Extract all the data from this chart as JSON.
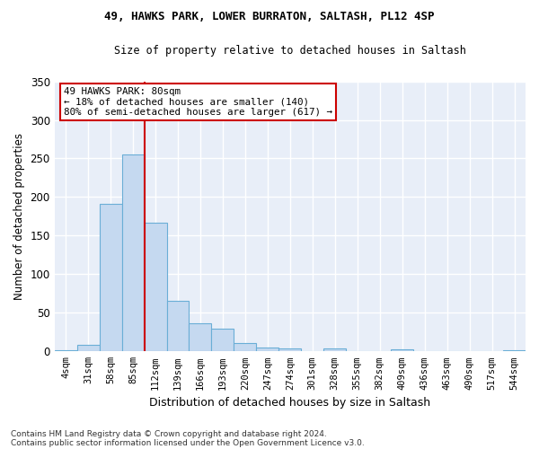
{
  "title1": "49, HAWKS PARK, LOWER BURRATON, SALTASH, PL12 4SP",
  "title2": "Size of property relative to detached houses in Saltash",
  "xlabel": "Distribution of detached houses by size in Saltash",
  "ylabel": "Number of detached properties",
  "bar_labels": [
    "4sqm",
    "31sqm",
    "58sqm",
    "85sqm",
    "112sqm",
    "139sqm",
    "166sqm",
    "193sqm",
    "220sqm",
    "247sqm",
    "274sqm",
    "301sqm",
    "328sqm",
    "355sqm",
    "382sqm",
    "409sqm",
    "436sqm",
    "463sqm",
    "490sqm",
    "517sqm",
    "544sqm"
  ],
  "bar_values": [
    2,
    9,
    191,
    255,
    167,
    65,
    37,
    29,
    11,
    5,
    4,
    0,
    4,
    0,
    0,
    3,
    0,
    0,
    0,
    0,
    2
  ],
  "bar_color": "#c5d9f0",
  "bar_edge_color": "#6aaed6",
  "fig_bg_color": "#ffffff",
  "plot_bg_color": "#e8eef8",
  "grid_color": "#ffffff",
  "vline_x": 3.5,
  "vline_color": "#cc0000",
  "annotation_text": "49 HAWKS PARK: 80sqm\n← 18% of detached houses are smaller (140)\n80% of semi-detached houses are larger (617) →",
  "annotation_box_color": "#ffffff",
  "annotation_border_color": "#cc0000",
  "footer_line1": "Contains HM Land Registry data © Crown copyright and database right 2024.",
  "footer_line2": "Contains public sector information licensed under the Open Government Licence v3.0.",
  "ylim": [
    0,
    350
  ],
  "yticks": [
    0,
    50,
    100,
    150,
    200,
    250,
    300,
    350
  ]
}
